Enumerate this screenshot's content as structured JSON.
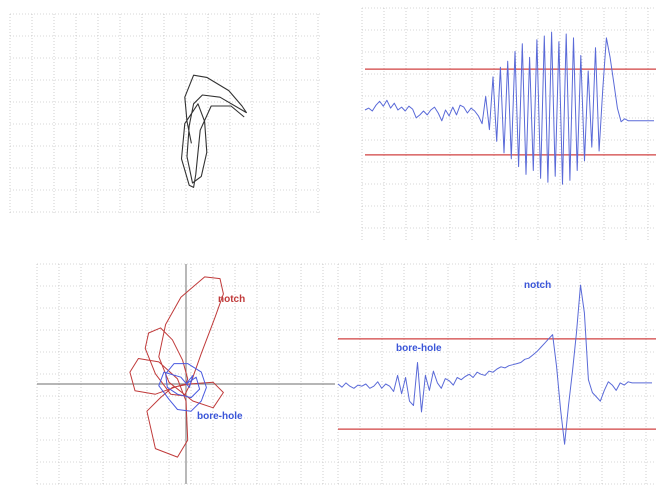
{
  "colors": {
    "grid": "#b0b0b0",
    "axis": "#8a8a8a",
    "threshold": "#d04040",
    "impedance_trace": "#333333",
    "signal_trace": "#5a6ad8",
    "notch_trace": "#c03a3a",
    "bore_hole_trace": "#4a5ae0",
    "notch_label": "#c03a3a",
    "bore_hole_label": "#3a55d8"
  },
  "labels": {
    "notch_impedance": "notch",
    "borehole_impedance": "bore-hole",
    "notch_signal": "notch",
    "borehole_signal": "bore-hole"
  },
  "chart_data": [
    {
      "type": "scatter",
      "title": "",
      "xlabel": "",
      "ylabel": "",
      "grid": true,
      "series": [
        {
          "points": [
            [
              -0.3,
              -1.2
            ],
            [
              -0.5,
              -0.2
            ],
            [
              -0.6,
              0.9
            ],
            [
              -0.2,
              1.9
            ],
            [
              0.4,
              1.8
            ],
            [
              1.4,
              1.2
            ],
            [
              2.0,
              0.5
            ],
            [
              2.2,
              0.2
            ],
            [
              1.0,
              0.9
            ],
            [
              0.2,
              1.0
            ],
            [
              -0.2,
              0.6
            ],
            [
              -0.4,
              -0.4
            ],
            [
              -0.5,
              -1.8
            ],
            [
              -0.25,
              -3.0
            ],
            [
              0.15,
              -2.7
            ],
            [
              0.4,
              -1.6
            ],
            [
              0.3,
              -0.2
            ],
            [
              0.0,
              0.6
            ],
            [
              -0.6,
              -0.3
            ],
            [
              -0.75,
              -1.9
            ],
            [
              -0.4,
              -3.1
            ],
            [
              -0.2,
              -3.2
            ],
            [
              -0.1,
              -2.6
            ],
            [
              0.1,
              -0.6
            ],
            [
              0.6,
              0.5
            ],
            [
              1.5,
              0.5
            ],
            [
              2.1,
              0.0
            ]
          ]
        }
      ]
    },
    {
      "type": "line",
      "title": "",
      "xlabel": "",
      "ylabel": "",
      "grid": true,
      "thresholds": [
        2.2,
        -2.2
      ],
      "series": [
        {
          "x": [
            0,
            1,
            2,
            3,
            4,
            5,
            6,
            7,
            8,
            9,
            10,
            11,
            12,
            13,
            14,
            15,
            16,
            17,
            18,
            19,
            20,
            21,
            22,
            23,
            24,
            25,
            26,
            27,
            28,
            29,
            30,
            31,
            32,
            33,
            34,
            35,
            36,
            37,
            38,
            39,
            40,
            41,
            42,
            43,
            44,
            45,
            46,
            47,
            48,
            49,
            50,
            51,
            52,
            53,
            54,
            55,
            56,
            57,
            58,
            59,
            60,
            61,
            62,
            63,
            64,
            65,
            66,
            67,
            68,
            69,
            70,
            71,
            72,
            73,
            74,
            75,
            76,
            77,
            78,
            79
          ],
          "values": [
            0.1,
            0.2,
            0.05,
            0.35,
            0.55,
            0.3,
            0.6,
            0.2,
            0.45,
            0.1,
            0.25,
            0.05,
            0.3,
            0.15,
            -0.3,
            -0.15,
            0.05,
            -0.15,
            0.1,
            0.25,
            -0.05,
            -0.45,
            0.1,
            -0.2,
            0.25,
            -0.15,
            0.35,
            0.25,
            -0.05,
            0.2,
            0.05,
            -0.2,
            -0.6,
            0.8,
            -0.9,
            1.8,
            -1.5,
            2.3,
            -2.1,
            2.6,
            -2.4,
            3.1,
            -2.8,
            3.5,
            -3.2,
            2.8,
            -3.0,
            3.7,
            -3.4,
            3.9,
            -3.6,
            4.1,
            -3.3,
            3.6,
            -3.7,
            4.0,
            -3.5,
            3.8,
            -3.0,
            2.9,
            -2.5,
            2.1,
            -1.8,
            3.3,
            -2.0,
            1.2,
            3.8,
            2.8,
            1.5,
            0.2,
            -0.5,
            -0.35,
            -0.45,
            -0.45,
            -0.45,
            -0.45,
            -0.45,
            -0.45,
            -0.45,
            -0.45
          ]
        }
      ]
    },
    {
      "type": "scatter",
      "title": "",
      "xlabel": "",
      "ylabel": "",
      "grid": true,
      "series": [
        {
          "points": [
            [
              0,
              0
            ],
            [
              0.1,
              0.3
            ],
            [
              -0.2,
              1.4
            ],
            [
              -0.8,
              2.6
            ],
            [
              -1.5,
              3.3
            ],
            [
              -2.2,
              3.0
            ],
            [
              -2.4,
              2.1
            ],
            [
              -1.8,
              0.6
            ],
            [
              -0.9,
              -0.6
            ],
            [
              -0.1,
              -0.7
            ],
            [
              0.3,
              0.1
            ],
            [
              0.9,
              1.8
            ],
            [
              1.7,
              3.9
            ],
            [
              2.2,
              5.3
            ],
            [
              2.0,
              6.2
            ],
            [
              1.1,
              6.3
            ],
            [
              -0.3,
              5.1
            ],
            [
              -1.2,
              3.5
            ],
            [
              -1.6,
              1.6
            ],
            [
              -1.0,
              0.1
            ],
            [
              0.4,
              -1.0
            ],
            [
              1.6,
              -1.4
            ],
            [
              2.2,
              -0.5
            ],
            [
              1.6,
              0.1
            ],
            [
              0.2,
              0.0
            ],
            [
              -0.8,
              -0.2
            ],
            [
              -1.5,
              -0.8
            ],
            [
              -2.3,
              -1.6
            ],
            [
              -1.8,
              -3.8
            ],
            [
              -0.5,
              -4.3
            ],
            [
              0.1,
              -3.3
            ],
            [
              0.0,
              -1.0
            ],
            [
              -0.5,
              0.3
            ],
            [
              -1.6,
              1.3
            ],
            [
              -2.8,
              1.5
            ],
            [
              -3.3,
              0.7
            ],
            [
              -3.0,
              -0.4
            ],
            [
              -1.8,
              -0.6
            ],
            [
              -0.4,
              -0.1
            ],
            [
              0,
              0
            ]
          ]
        },
        {
          "points": [
            [
              0,
              0
            ],
            [
              0.6,
              0.4
            ],
            [
              0.8,
              -0.3
            ],
            [
              0.3,
              -0.8
            ],
            [
              -0.5,
              -0.6
            ],
            [
              -1.1,
              -0.2
            ],
            [
              -1.2,
              0.6
            ],
            [
              -0.7,
              1.2
            ],
            [
              0.1,
              1.2
            ],
            [
              0.9,
              0.7
            ],
            [
              1.2,
              -0.2
            ],
            [
              0.9,
              -1.0
            ],
            [
              0.3,
              -1.6
            ],
            [
              -0.5,
              -1.5
            ],
            [
              -1.0,
              -0.9
            ],
            [
              -1.6,
              -0.1
            ],
            [
              -1.3,
              0.7
            ],
            [
              -0.3,
              0.4
            ],
            [
              0.2,
              -0.2
            ],
            [
              0.4,
              0.5
            ],
            [
              0,
              0
            ]
          ]
        }
      ]
    },
    {
      "type": "line",
      "title": "",
      "xlabel": "",
      "ylabel": "",
      "grid": true,
      "thresholds": [
        2.1,
        -2.1
      ],
      "series": [
        {
          "x": [
            0,
            1,
            2,
            3,
            4,
            5,
            6,
            7,
            8,
            9,
            10,
            11,
            12,
            13,
            14,
            15,
            16,
            17,
            18,
            19,
            20,
            21,
            22,
            23,
            24,
            25,
            26,
            27,
            28,
            29,
            30,
            31,
            32,
            33,
            34,
            35,
            36,
            37,
            38,
            39,
            40,
            41,
            42,
            43,
            44,
            45,
            46,
            47,
            48,
            49,
            50,
            51,
            52,
            53,
            54,
            55,
            56,
            57,
            58,
            59,
            60,
            61,
            62,
            63,
            64,
            65,
            66,
            67,
            68,
            69,
            70,
            71,
            72,
            73,
            74,
            75,
            76,
            77,
            78,
            79
          ],
          "values": [
            0,
            -0.15,
            0.05,
            -0.1,
            -0.2,
            -0.05,
            -0.1,
            0.0,
            -0.2,
            -0.1,
            0.1,
            -0.2,
            0.0,
            -0.1,
            -0.35,
            0.4,
            -0.45,
            0.3,
            -0.8,
            -1.0,
            1.0,
            -1.3,
            0.4,
            -0.3,
            0.6,
            0.05,
            -0.2,
            0.25,
            0.15,
            -0.05,
            0.3,
            0.2,
            0.35,
            0.45,
            0.3,
            0.55,
            0.45,
            0.4,
            0.6,
            0.55,
            0.7,
            0.8,
            0.75,
            0.85,
            0.9,
            0.95,
            1.0,
            1.15,
            1.2,
            1.35,
            1.5,
            1.7,
            1.9,
            2.1,
            2.3,
            0.8,
            -1.2,
            -2.8,
            -1.0,
            0.6,
            2.4,
            4.6,
            3.3,
            0.2,
            -0.4,
            -0.6,
            -0.8,
            -0.3,
            0.1,
            -0.05,
            -0.3,
            0.05,
            -0.05,
            0.1,
            0.05,
            0.05,
            0.05,
            0.05,
            0.05,
            0.05
          ]
        }
      ]
    }
  ]
}
